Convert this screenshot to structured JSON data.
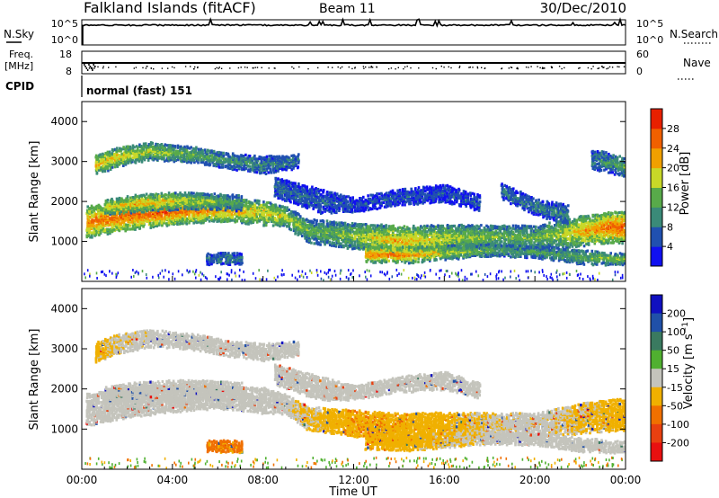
{
  "header": {
    "station": "Falkland Islands (fitACF)",
    "beam": "Beam 11",
    "date": "30/Dec/2010"
  },
  "top_panels": {
    "nsky_label": "N.Sky",
    "nsky_ticks": [
      "10^5",
      "10^0"
    ],
    "nsearch_label": "N.Search",
    "nsearch_ticks": [
      "10^5",
      "10^0"
    ],
    "freq_label": "Freq.",
    "freq_unit": "[MHz]",
    "freq_ticks": [
      "18",
      "8"
    ],
    "nave_label": "Nave",
    "nave_ticks": [
      "60",
      "0"
    ],
    "cpid_label": "CPID",
    "cpid_text": "normal (fast) 151"
  },
  "x_axis": {
    "ticks": [
      "00:00",
      "04:00",
      "08:00",
      "12:00",
      "16:00",
      "20:00",
      "00:00"
    ],
    "title": "Time UT"
  },
  "colors": {
    "power": [
      "#1010f0",
      "#2050b0",
      "#3a8a78",
      "#58aa4a",
      "#c8d828",
      "#f0a000",
      "#f06000",
      "#e82000"
    ],
    "velocity": [
      "#1010c0",
      "#2050a8",
      "#3a7a60",
      "#50b030",
      "#c4c4bc",
      "#f0b000",
      "#f07000",
      "#e84010",
      "#e81010"
    ]
  },
  "chart_data": [
    {
      "type": "heatmap",
      "title": "",
      "xlabel": "Time UT",
      "ylabel": "Slant Range [km]",
      "xlim": [
        "00:00",
        "24:00"
      ],
      "ylim": [
        0,
        4500
      ],
      "yticks": [
        1000,
        2000,
        3000,
        4000
      ],
      "colorbar": {
        "label": "Power [dB]",
        "ticks": [
          4,
          8,
          12,
          16,
          20,
          24,
          28
        ],
        "range": [
          0,
          32
        ]
      },
      "bands": [
        {
          "time_hours": [
            0.2,
            2,
            4,
            6,
            8,
            9,
            10,
            12,
            14,
            16,
            18,
            20,
            22,
            23.5,
            24
          ],
          "center_km": [
            1520,
            1700,
            1780,
            1820,
            1750,
            1650,
            1300,
            1180,
            1050,
            1110,
            1150,
            1140,
            1300,
            1400,
            1400
          ],
          "width_km": [
            400,
            380,
            320,
            280,
            320,
            250,
            300,
            330,
            380,
            350,
            300,
            300,
            380,
            400,
            400
          ],
          "power_dB": [
            24,
            27,
            26,
            23,
            20,
            18,
            14,
            16,
            22,
            18,
            15,
            14,
            22,
            27,
            27
          ]
        },
        {
          "time_hours": [
            1,
            2.5,
            4,
            5.5,
            7
          ],
          "center_km": [
            1900,
            2000,
            2050,
            2050,
            2000
          ],
          "width_km": [
            200,
            220,
            220,
            200,
            200
          ],
          "power_dB": [
            20,
            22,
            20,
            16,
            12
          ]
        },
        {
          "time_hours": [
            0.6,
            1.5,
            3,
            5,
            6.5,
            8,
            9.5
          ],
          "center_km": [
            2950,
            3150,
            3300,
            3200,
            3050,
            2950,
            3050
          ],
          "width_km": [
            250,
            240,
            220,
            200,
            200,
            220,
            180
          ],
          "power_dB": [
            20,
            21,
            17,
            14,
            12,
            10,
            8
          ]
        },
        {
          "time_hours": [
            8.5,
            10.5,
            12,
            14,
            16,
            17.5
          ],
          "center_km": [
            2400,
            2050,
            1950,
            2150,
            2250,
            2000
          ],
          "width_km": [
            250,
            300,
            180,
            200,
            220,
            200
          ],
          "power_dB": [
            8,
            7,
            6,
            6,
            6,
            6
          ]
        },
        {
          "time_hours": [
            18.5,
            20,
            21.5
          ],
          "center_km": [
            2300,
            1900,
            1700
          ],
          "width_km": [
            200,
            200,
            250
          ],
          "power_dB": [
            8,
            9,
            10
          ]
        },
        {
          "time_hours": [
            22.5,
            23.3,
            24
          ],
          "center_km": [
            3100,
            3000,
            2900
          ],
          "width_km": [
            250,
            250,
            250
          ],
          "power_dB": [
            9,
            12,
            14
          ]
        },
        {
          "time_hours": [
            12.5,
            14.5,
            16,
            18,
            20,
            22,
            23.5,
            24
          ],
          "center_km": [
            720,
            700,
            760,
            820,
            780,
            650,
            600,
            600
          ],
          "width_km": [
            200,
            200,
            180,
            150,
            150,
            180,
            150,
            150
          ],
          "power_dB": [
            26,
            24,
            18,
            14,
            12,
            14,
            16,
            16
          ]
        },
        {
          "time_hours": [
            5.5,
            6.2,
            7
          ],
          "center_km": [
            600,
            620,
            600
          ],
          "width_km": [
            150,
            150,
            150
          ],
          "power_dB": [
            8,
            10,
            8
          ]
        }
      ]
    },
    {
      "type": "heatmap",
      "title": "",
      "xlabel": "Time UT",
      "ylabel": "Slant Range [km]",
      "xlim": [
        "00:00",
        "24:00"
      ],
      "ylim": [
        0,
        4500
      ],
      "yticks": [
        1000,
        2000,
        3000,
        4000
      ],
      "colorbar": {
        "label": "Velocity [m s^-1]",
        "ticks": [
          200,
          100,
          50,
          15,
          -15,
          -50,
          -100,
          -200
        ]
      },
      "bands": [
        {
          "time_hours": [
            0.2,
            2,
            4,
            6,
            8,
            9,
            10,
            12,
            14,
            16,
            18,
            20,
            22,
            23.5,
            24
          ],
          "center_km": [
            1520,
            1700,
            1780,
            1820,
            1750,
            1650,
            1300,
            1180,
            1050,
            1110,
            1150,
            1140,
            1300,
            1400,
            1400
          ],
          "width_km": [
            400,
            380,
            320,
            280,
            320,
            250,
            300,
            330,
            380,
            350,
            300,
            300,
            380,
            400,
            400
          ],
          "velocity_ms": [
            0,
            0,
            0,
            0,
            0,
            0,
            -20,
            -40,
            -40,
            -30,
            -10,
            0,
            -20,
            -30,
            -30
          ]
        },
        {
          "time_hours": [
            1,
            2.5,
            4,
            5.5,
            7
          ],
          "center_km": [
            1900,
            2000,
            2050,
            2050,
            2000
          ],
          "width_km": [
            200,
            220,
            220,
            200,
            200
          ],
          "velocity_ms": [
            0,
            0,
            0,
            0,
            0
          ]
        },
        {
          "time_hours": [
            0.6,
            1.5,
            3,
            5,
            6.5,
            8,
            9.5
          ],
          "center_km": [
            2950,
            3150,
            3300,
            3200,
            3050,
            2950,
            3050
          ],
          "width_km": [
            250,
            240,
            220,
            200,
            200,
            220,
            180
          ],
          "velocity_ms": [
            -30,
            -10,
            0,
            0,
            0,
            0,
            0
          ]
        },
        {
          "time_hours": [
            8.5,
            10.5,
            12,
            14,
            16,
            17.5
          ],
          "center_km": [
            2400,
            2050,
            1950,
            2150,
            2250,
            2000
          ],
          "width_km": [
            250,
            300,
            180,
            200,
            220,
            200
          ],
          "velocity_ms": [
            0,
            0,
            0,
            0,
            0,
            0
          ]
        },
        {
          "time_hours": [
            12.5,
            14.5,
            16,
            18,
            20,
            22,
            23.5,
            24
          ],
          "center_km": [
            720,
            700,
            760,
            820,
            780,
            650,
            600,
            600
          ],
          "width_km": [
            200,
            200,
            180,
            150,
            150,
            180,
            150,
            150
          ],
          "velocity_ms": [
            -40,
            -30,
            -20,
            0,
            0,
            0,
            0,
            0
          ]
        },
        {
          "time_hours": [
            5.5,
            6.2,
            7
          ],
          "center_km": [
            600,
            620,
            600
          ],
          "width_km": [
            150,
            150,
            150
          ],
          "velocity_ms": [
            -60,
            -60,
            -60
          ]
        }
      ]
    }
  ]
}
